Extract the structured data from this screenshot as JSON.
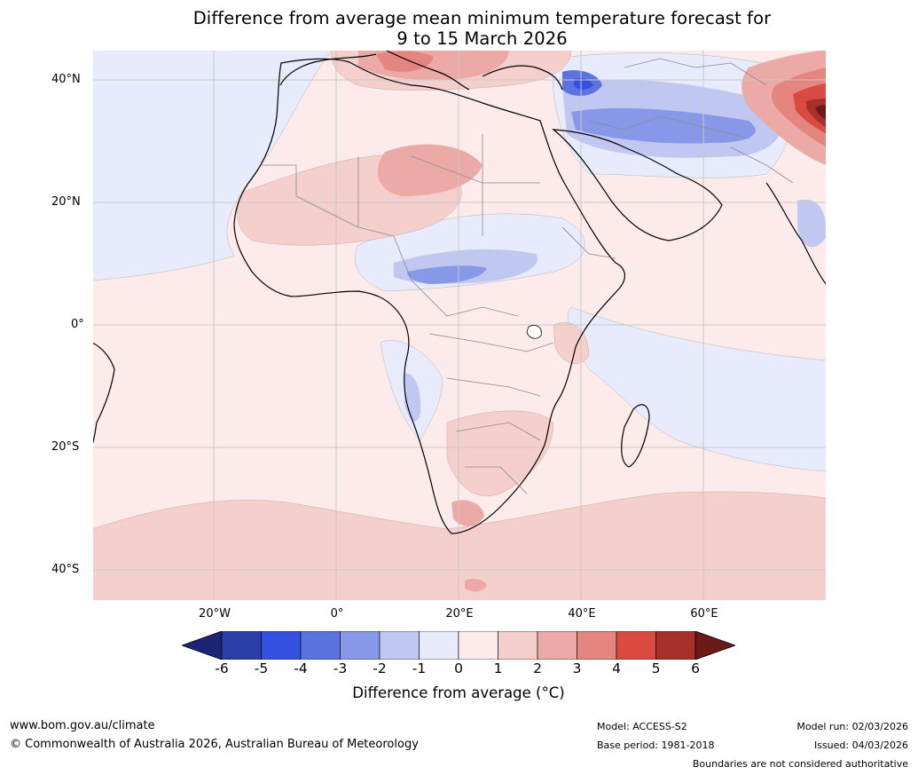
{
  "title": {
    "line1": "Difference from average mean minimum temperature forecast for",
    "line2": "9 to 15 March 2026"
  },
  "map": {
    "lat_ticks": [
      "40°N",
      "20°N",
      "0°",
      "20°S",
      "40°S"
    ],
    "lon_ticks": [
      "20°W",
      "0°",
      "20°E",
      "40°E",
      "60°E"
    ]
  },
  "colorbar": {
    "ticks": [
      "-6",
      "-5",
      "-4",
      "-3",
      "-2",
      "-1",
      "0",
      "1",
      "2",
      "3",
      "4",
      "5",
      "6"
    ],
    "label": "Difference from average (°C)",
    "colors": {
      "below_-6": "#1a2575",
      "-6_-5": "#2b3ea8",
      "-5_-4": "#3350e0",
      "-4_-3": "#5a73e0",
      "-3_-2": "#8898e8",
      "-2_-1": "#c0c8f2",
      "-1_0": "#e8ebfb",
      "0_1": "#fcebea",
      "1_2": "#f5cfcc",
      "2_3": "#ecaaa6",
      "3_4": "#e48580",
      "4_5": "#d94a40",
      "5_6": "#a8302a",
      "above_6": "#6b1a17"
    }
  },
  "footer": {
    "website": "www.bom.gov.au/climate",
    "copyright": "© Commonwealth of Australia 2026, Australian Bureau of Meteorology",
    "model": "Model: ACCESS-S2",
    "base_period": "Base period: 1981-2018",
    "model_run": "Model run: 02/03/2026",
    "issued": "Issued: 04/03/2026",
    "disclaimer": "Boundaries are not considered authoritative"
  }
}
